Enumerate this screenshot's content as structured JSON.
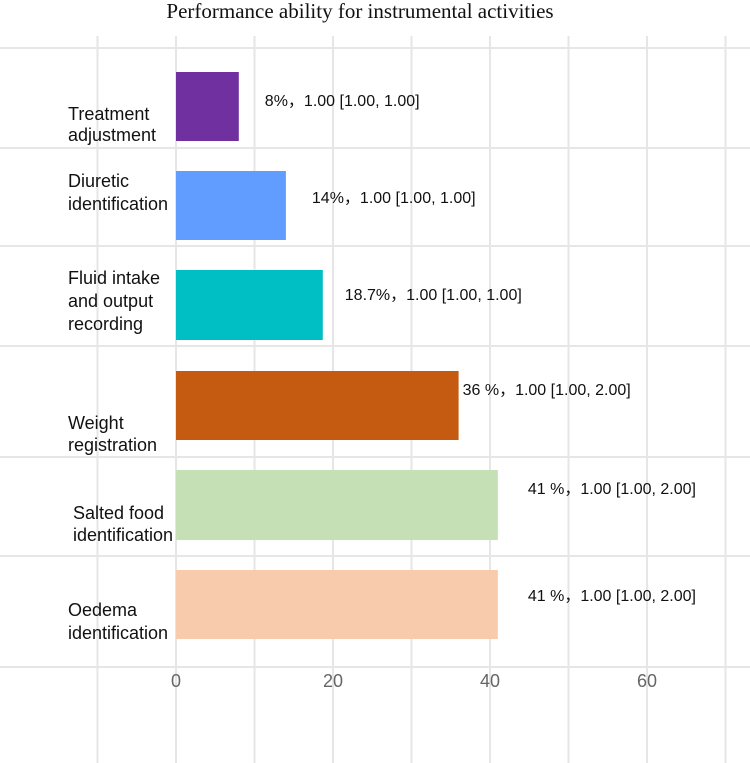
{
  "chart_data": {
    "type": "bar",
    "orientation": "horizontal",
    "title": "Performance ability for instrumental activities",
    "xlabel": "",
    "ylabel": "",
    "xlim": [
      -14,
      73
    ],
    "xticks": [
      0,
      20,
      40,
      60
    ],
    "grid": true,
    "legend": "none",
    "categories": [
      [
        "Treatment",
        "adjustment"
      ],
      [
        "Diuretic",
        "identification"
      ],
      [
        "Fluid intake",
        "and output",
        "recording"
      ],
      [
        "Weight",
        "registration"
      ],
      [
        "Salted food",
        "identification"
      ],
      [
        "Oedema",
        "identification"
      ]
    ],
    "values": [
      8,
      14,
      18.7,
      36,
      41,
      41
    ],
    "data_labels": [
      "8%，1.00 [1.00, 1.00]",
      "14%，1.00 [1.00, 1.00]",
      "18.7%，1.00 [1.00, 1.00]",
      "36 %，1.00 [1.00, 2.00]",
      "41 %，1.00 [1.00, 2.00]",
      "41 %，1.00 [1.00, 2.00]"
    ],
    "colors": [
      "#7030a0",
      "#619cff",
      "#00bfc4",
      "#c55a11",
      "#c5e0b4",
      "#f8cbad"
    ]
  }
}
